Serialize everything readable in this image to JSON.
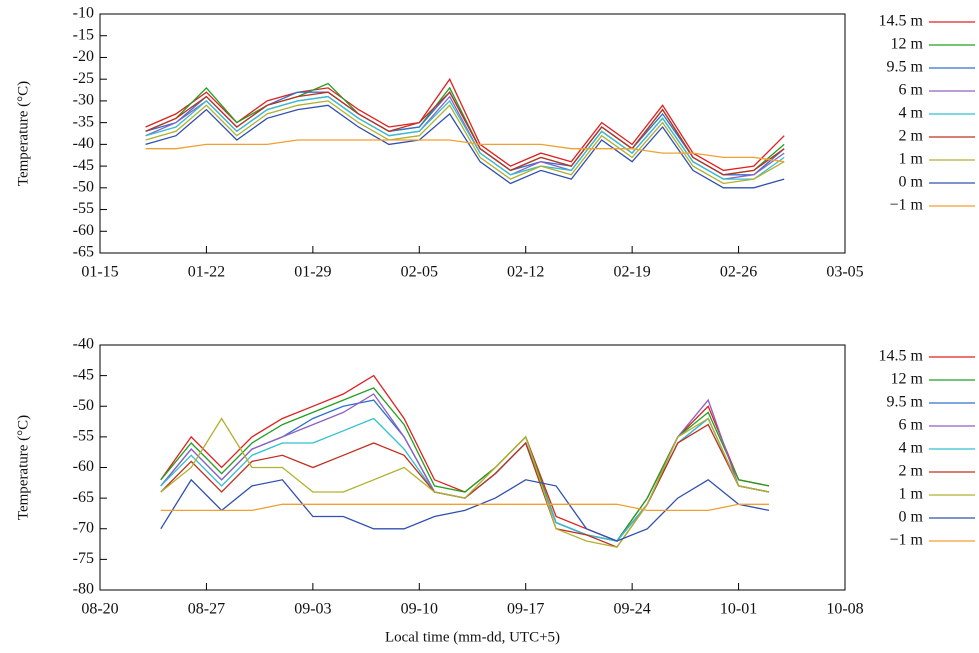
{
  "chart_data": [
    {
      "type": "line",
      "ylabel": "Temperature (°C)",
      "x": [
        "01-18",
        "01-20",
        "01-22",
        "01-24",
        "01-26",
        "01-28",
        "01-30",
        "02-01",
        "02-03",
        "02-05",
        "02-07",
        "02-09",
        "02-11",
        "02-13",
        "02-15",
        "02-17",
        "02-19",
        "02-21",
        "02-23",
        "02-25",
        "02-27",
        "03-01"
      ],
      "xlim": [
        "01-15",
        "03-05"
      ],
      "xticks": [
        "01-15",
        "01-22",
        "01-29",
        "02-05",
        "02-12",
        "02-19",
        "02-26",
        "03-05"
      ],
      "ylim": [
        -65,
        -10
      ],
      "yticks": [
        -65,
        -60,
        -55,
        -50,
        -45,
        -40,
        -35,
        -30,
        -25,
        -20,
        -15,
        -10
      ],
      "series": [
        {
          "name": "14.5 m",
          "color": "#e02020",
          "values": [
            -36,
            -33,
            -28,
            -35,
            -30,
            -28,
            -27,
            -32,
            -36,
            -35,
            -25,
            -40,
            -45,
            -42,
            -44,
            -35,
            -40,
            -31,
            -42,
            -46,
            -45,
            -38
          ]
        },
        {
          "name": "12 m",
          "color": "#20a020",
          "values": [
            -37,
            -34,
            -27,
            -35,
            -31,
            -29,
            -26,
            -33,
            -37,
            -36,
            -27,
            -41,
            -46,
            -43,
            -45,
            -36,
            -41,
            -32,
            -43,
            -47,
            -46,
            -40
          ]
        },
        {
          "name": "9.5 m",
          "color": "#3070d0",
          "values": [
            -37,
            -35,
            -29,
            -36,
            -31,
            -28,
            -28,
            -33,
            -37,
            -36,
            -28,
            -41,
            -46,
            -44,
            -45,
            -36,
            -41,
            -33,
            -43,
            -47,
            -47,
            -41
          ]
        },
        {
          "name": "6 m",
          "color": "#9060c0",
          "values": [
            -38,
            -35,
            -30,
            -37,
            -32,
            -30,
            -29,
            -34,
            -38,
            -37,
            -29,
            -42,
            -47,
            -44,
            -46,
            -37,
            -42,
            -34,
            -44,
            -48,
            -47,
            -42
          ]
        },
        {
          "name": "4 m",
          "color": "#30c0d0",
          "values": [
            -38,
            -36,
            -30,
            -37,
            -32,
            -30,
            -29,
            -34,
            -38,
            -37,
            -30,
            -42,
            -47,
            -45,
            -46,
            -37,
            -42,
            -34,
            -44,
            -48,
            -48,
            -43
          ]
        },
        {
          "name": "2 m",
          "color": "#c03020",
          "values": [
            -37,
            -34,
            -29,
            -36,
            -31,
            -29,
            -28,
            -33,
            -37,
            -35,
            -28,
            -41,
            -46,
            -43,
            -45,
            -36,
            -41,
            -32,
            -43,
            -47,
            -46,
            -41
          ]
        },
        {
          "name": "1 m",
          "color": "#b0b030",
          "values": [
            -39,
            -37,
            -31,
            -38,
            -33,
            -31,
            -30,
            -35,
            -39,
            -38,
            -31,
            -43,
            -48,
            -45,
            -47,
            -38,
            -43,
            -35,
            -45,
            -49,
            -48,
            -44
          ]
        },
        {
          "name": "0 m",
          "color": "#3050b0",
          "values": [
            -40,
            -38,
            -32,
            -39,
            -34,
            -32,
            -31,
            -36,
            -40,
            -39,
            -33,
            -44,
            -49,
            -46,
            -48,
            -39,
            -44,
            -36,
            -46,
            -50,
            -50,
            -48
          ]
        },
        {
          "name": "−1 m",
          "color": "#f0a030",
          "values": [
            -41,
            -41,
            -40,
            -40,
            -40,
            -39,
            -39,
            -39,
            -39,
            -39,
            -39,
            -40,
            -40,
            -40,
            -41,
            -41,
            -41,
            -42,
            -42,
            -43,
            -43,
            -44
          ]
        }
      ]
    },
    {
      "type": "line",
      "ylabel": "Temperature (°C)",
      "xlabel": "Local time (mm-dd, UTC+5)",
      "x": [
        "08-24",
        "08-26",
        "08-28",
        "08-30",
        "09-01",
        "09-03",
        "09-05",
        "09-07",
        "09-09",
        "09-11",
        "09-13",
        "09-15",
        "09-17",
        "09-19",
        "09-21",
        "09-23",
        "09-25",
        "09-27",
        "09-29",
        "10-01",
        "10-03"
      ],
      "xlim": [
        "08-20",
        "10-08"
      ],
      "xticks": [
        "08-20",
        "08-27",
        "09-03",
        "09-10",
        "09-17",
        "09-24",
        "10-01",
        "10-08"
      ],
      "ylim": [
        -80,
        -40
      ],
      "yticks": [
        -80,
        -75,
        -70,
        -65,
        -60,
        -55,
        -50,
        -45,
        -40
      ],
      "series": [
        {
          "name": "14.5 m",
          "color": "#e02020",
          "values": [
            -62,
            -55,
            -60,
            -55,
            -52,
            -50,
            -48,
            -45,
            -52,
            -62,
            -64,
            -60,
            -55,
            -68,
            -70,
            -72,
            -65,
            -55,
            -50,
            -62,
            -63
          ]
        },
        {
          "name": "12 m",
          "color": "#20a020",
          "values": [
            -62,
            -56,
            -61,
            -56,
            -53,
            -51,
            -49,
            -47,
            -53,
            -63,
            -64,
            -60,
            -55,
            -69,
            -71,
            -72,
            -65,
            -55,
            -51,
            -62,
            -63
          ]
        },
        {
          "name": "9.5 m",
          "color": "#3070d0",
          "values": [
            -63,
            -57,
            -62,
            -57,
            -55,
            -52,
            -50,
            -49,
            -55,
            -64,
            -65,
            -61,
            -56,
            -69,
            -71,
            -72,
            -66,
            -56,
            -52,
            -63,
            -64
          ]
        },
        {
          "name": "6 m",
          "color": "#9060c0",
          "values": [
            -63,
            -57,
            -62,
            -57,
            -55,
            -53,
            -51,
            -48,
            -55,
            -64,
            -65,
            -61,
            -56,
            -69,
            -71,
            -72,
            -66,
            -55,
            -49,
            -63,
            -64
          ]
        },
        {
          "name": "4 m",
          "color": "#30c0d0",
          "values": [
            -63,
            -58,
            -63,
            -58,
            -56,
            -56,
            -54,
            -52,
            -57,
            -64,
            -65,
            -61,
            -56,
            -69,
            -71,
            -72,
            -66,
            -56,
            -52,
            -63,
            -64
          ]
        },
        {
          "name": "2 m",
          "color": "#c03020",
          "values": [
            -64,
            -59,
            -64,
            -59,
            -58,
            -60,
            -58,
            -56,
            -58,
            -64,
            -65,
            -61,
            -56,
            -70,
            -71,
            -73,
            -66,
            -56,
            -53,
            -63,
            -64
          ]
        },
        {
          "name": "1 m",
          "color": "#b0b030",
          "values": [
            -64,
            -60,
            -52,
            -60,
            -60,
            -64,
            -64,
            -62,
            -60,
            -64,
            -65,
            -60,
            -55,
            -70,
            -72,
            -73,
            -66,
            -55,
            -52,
            -63,
            -64
          ]
        },
        {
          "name": "0 m",
          "color": "#3050b0",
          "values": [
            -70,
            -62,
            -67,
            -63,
            -62,
            -68,
            -68,
            -70,
            -70,
            -68,
            -67,
            -65,
            -62,
            -63,
            -70,
            -72,
            -70,
            -65,
            -62,
            -66,
            -67
          ]
        },
        {
          "name": "−1 m",
          "color": "#f0a030",
          "values": [
            -67,
            -67,
            -67,
            -67,
            -66,
            -66,
            -66,
            -66,
            -66,
            -66,
            -66,
            -66,
            -66,
            -66,
            -66,
            -66,
            -67,
            -67,
            -67,
            -66,
            -66
          ]
        }
      ]
    }
  ]
}
